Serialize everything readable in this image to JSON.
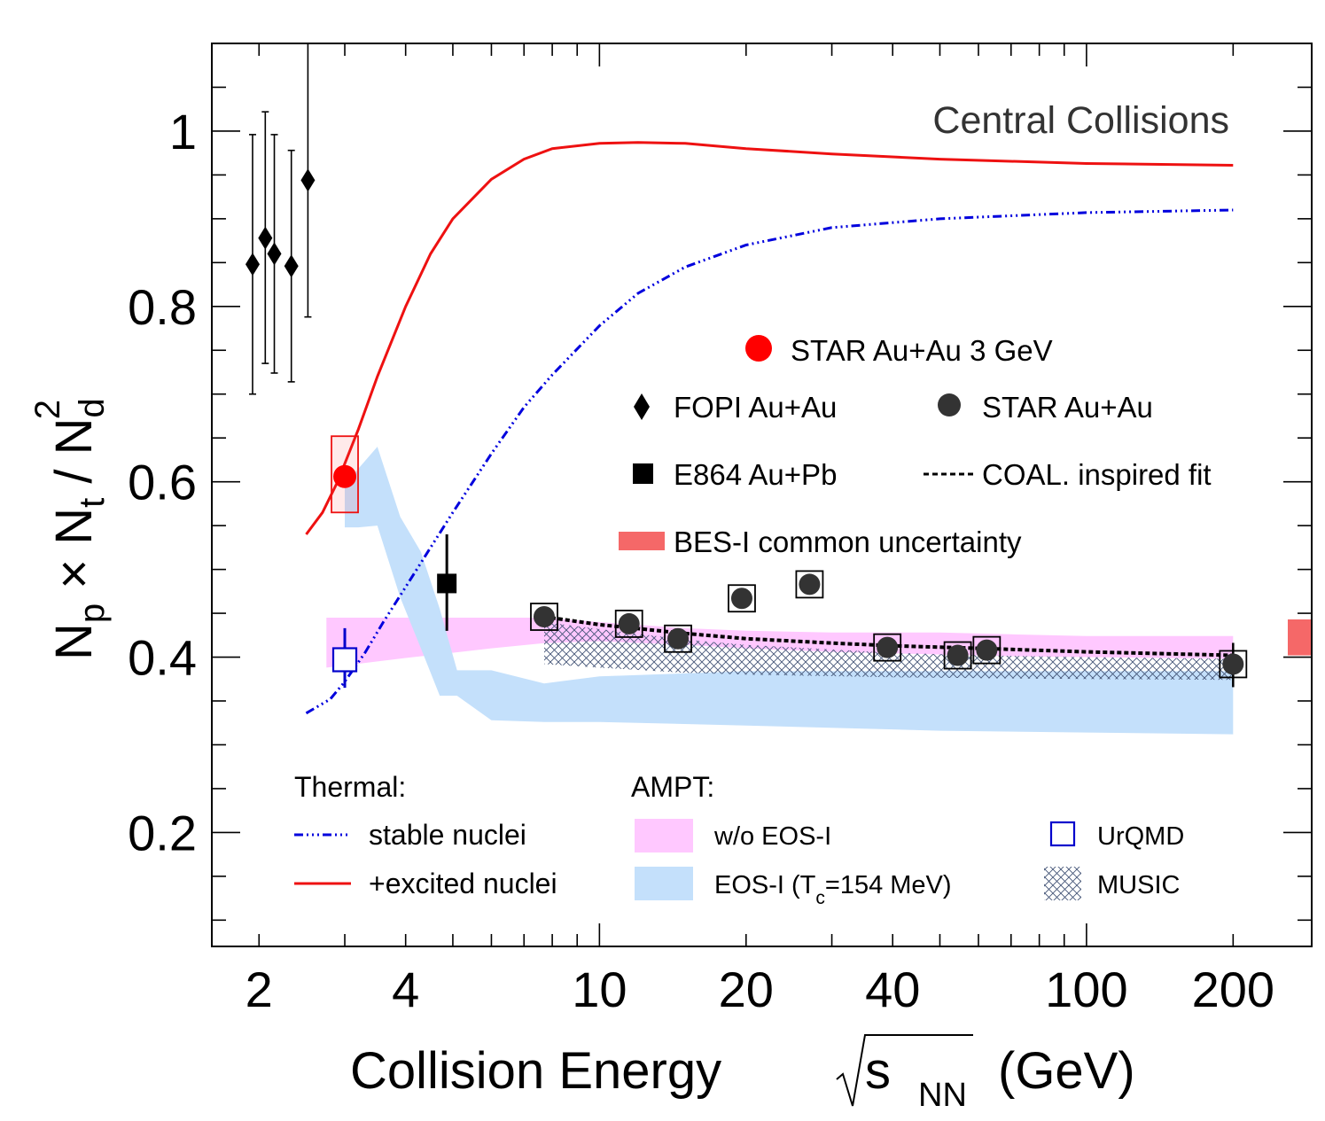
{
  "chart_data": {
    "type": "scatter",
    "x_scale": "log",
    "xlim": [
      1.6,
      290
    ],
    "ylim": [
      0.07,
      1.1
    ],
    "xlabel": {
      "main": "Collision Energy",
      "s": "s",
      "sub": "NN",
      "unit": "(GeV)"
    },
    "ylabel": {
      "np": "N",
      "p": "p",
      "times": " × N",
      "t": "t",
      "slash": " / N",
      "d": "d",
      "sup": "2"
    },
    "x_ticks": [
      {
        "v": 2,
        "label": "2"
      },
      {
        "v": 4,
        "label": "4"
      },
      {
        "v": 10,
        "label": "10"
      },
      {
        "v": 20,
        "label": "20"
      },
      {
        "v": 40,
        "label": "40"
      },
      {
        "v": 100,
        "label": "100"
      },
      {
        "v": 200,
        "label": "200"
      }
    ],
    "y_ticks": [
      {
        "v": 0.2,
        "label": "0.2"
      },
      {
        "v": 0.4,
        "label": "0.4"
      },
      {
        "v": 0.6,
        "label": "0.6"
      },
      {
        "v": 0.8,
        "label": "0.8"
      },
      {
        "v": 1.0,
        "label": "1"
      }
    ],
    "annotation": "Central Collisions",
    "series": [
      {
        "name": "STAR Au+Au 3 GeV",
        "marker": "circle",
        "color": "#ff0000",
        "points": [
          {
            "x": 3.0,
            "y": 0.606,
            "sys": [
              0.565,
              0.652
            ]
          }
        ]
      },
      {
        "name": "FOPI Au+Au",
        "marker": "diamond",
        "color": "#000000",
        "points": [
          {
            "x": 1.94,
            "y": 0.848,
            "err": [
              0.7,
              0.996
            ]
          },
          {
            "x": 2.06,
            "y": 0.878,
            "err": [
              0.735,
              1.022
            ]
          },
          {
            "x": 2.15,
            "y": 0.86,
            "err": [
              0.724,
              0.996
            ]
          },
          {
            "x": 2.33,
            "y": 0.846,
            "err": [
              0.714,
              0.978
            ]
          },
          {
            "x": 2.52,
            "y": 0.944,
            "err": [
              0.788,
              1.1
            ]
          }
        ]
      },
      {
        "name": "STAR Au+Au",
        "marker": "circle",
        "color": "#333333",
        "points": [
          {
            "x": 7.7,
            "y": 0.446
          },
          {
            "x": 11.5,
            "y": 0.438
          },
          {
            "x": 14.5,
            "y": 0.421
          },
          {
            "x": 19.6,
            "y": 0.467
          },
          {
            "x": 27,
            "y": 0.483
          },
          {
            "x": 39,
            "y": 0.411
          },
          {
            "x": 54.4,
            "y": 0.402
          },
          {
            "x": 62.4,
            "y": 0.408
          },
          {
            "x": 200,
            "y": 0.392
          }
        ]
      },
      {
        "name": "E864 Au+Pb",
        "marker": "square",
        "color": "#000000",
        "points": [
          {
            "x": 4.86,
            "y": 0.484,
            "err": [
              0.43,
              0.54
            ]
          }
        ]
      },
      {
        "name": "UrQMD",
        "marker": "open-square",
        "color": "#0000cc",
        "points": [
          {
            "x": 3.0,
            "y": 0.397,
            "err": [
              0.365,
              0.433
            ]
          }
        ]
      }
    ],
    "curves": [
      {
        "name": "+excited nuclei",
        "style": "solid",
        "color": "#ee1111",
        "x": [
          2.5,
          2.7,
          2.9,
          3.2,
          3.5,
          4,
          4.5,
          5,
          6,
          7,
          8,
          10,
          12,
          15,
          20,
          30,
          50,
          100,
          200
        ],
        "y": [
          0.54,
          0.565,
          0.6,
          0.66,
          0.72,
          0.8,
          0.86,
          0.9,
          0.945,
          0.968,
          0.98,
          0.986,
          0.987,
          0.986,
          0.98,
          0.974,
          0.968,
          0.963,
          0.961
        ]
      },
      {
        "name": "stable nuclei",
        "style": "dash-dot",
        "color": "#0000dd",
        "x": [
          2.5,
          2.8,
          3.0,
          3.3,
          3.6,
          4,
          4.5,
          5,
          6,
          7,
          8,
          10,
          12,
          15,
          20,
          30,
          50,
          100,
          200
        ],
        "y": [
          0.336,
          0.352,
          0.372,
          0.405,
          0.44,
          0.48,
          0.525,
          0.565,
          0.632,
          0.685,
          0.722,
          0.778,
          0.815,
          0.845,
          0.87,
          0.89,
          0.9,
          0.907,
          0.91
        ]
      },
      {
        "name": "COAL. inspired fit",
        "style": "dotted",
        "color": "#000000",
        "x": [
          7.7,
          10,
          15,
          20,
          30,
          40,
          60,
          100,
          200
        ],
        "y": [
          0.446,
          0.437,
          0.427,
          0.421,
          0.416,
          0.413,
          0.41,
          0.406,
          0.402
        ]
      }
    ],
    "bands": [
      {
        "name": "w/o EOS-I",
        "color": "#ffc8ff",
        "x": [
          2.75,
          4,
          5,
          6,
          7.7,
          10,
          15,
          20,
          30,
          50,
          70,
          100,
          200
        ],
        "lo": [
          0.388,
          0.399,
          0.405,
          0.41,
          0.416,
          0.418,
          0.414,
          0.41,
          0.406,
          0.403,
          0.401,
          0.4,
          0.398
        ],
        "hi": [
          0.445,
          0.445,
          0.445,
          0.445,
          0.445,
          0.44,
          0.433,
          0.43,
          0.428,
          0.428,
          0.426,
          0.424,
          0.424
        ]
      },
      {
        "name": "EOS-I (Tc=154 MeV)",
        "color": "#c4e0fb",
        "x": [
          3.0,
          3.2,
          3.5,
          3.9,
          4.3,
          4.7,
          5.1,
          6,
          7.7,
          10,
          20,
          50,
          100,
          200
        ],
        "lo": [
          0.548,
          0.548,
          0.55,
          0.468,
          0.41,
          0.356,
          0.356,
          0.328,
          0.326,
          0.326,
          0.322,
          0.316,
          0.314,
          0.312
        ],
        "hi": [
          0.595,
          0.615,
          0.64,
          0.56,
          0.52,
          0.455,
          0.385,
          0.385,
          0.37,
          0.378,
          0.384,
          0.384,
          0.384,
          0.384
        ]
      },
      {
        "name": "MUSIC",
        "pattern": "cross-hatch",
        "color": "#445577",
        "x": [
          7.7,
          10,
          15,
          20,
          40,
          60,
          100,
          200
        ],
        "lo": [
          0.392,
          0.388,
          0.382,
          0.38,
          0.377,
          0.376,
          0.375,
          0.374
        ],
        "hi": [
          0.44,
          0.432,
          0.42,
          0.414,
          0.405,
          0.402,
          0.4,
          0.398
        ]
      }
    ],
    "common_uncertainty": {
      "name": "BES-I common uncertainty",
      "color": "#f56868",
      "lo": 0.402,
      "hi": 0.443
    },
    "legend_top": {
      "star3": "STAR Au+Au 3 GeV",
      "fopi": "FOPI Au+Au",
      "star": "STAR Au+Au",
      "e864": "E864 Au+Pb",
      "coal": "COAL. inspired fit",
      "bes": "BES-I common uncertainty"
    },
    "legend_bottom": {
      "thermal_title": "Thermal:",
      "stable": "stable nuclei",
      "excited": "+excited nuclei",
      "ampt_title": "AMPT:",
      "woeos": "w/o EOS-I",
      "eos_pre": "EOS-I (T",
      "eos_sub": "c",
      "eos_post": "=154 MeV)",
      "urqmd": "UrQMD",
      "music": "MUSIC"
    }
  }
}
